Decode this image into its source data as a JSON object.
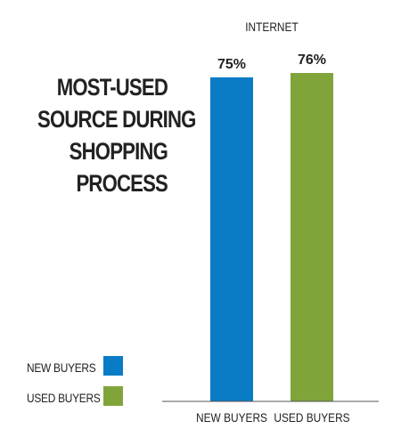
{
  "title_lines": [
    "MOST-USED",
    "SOURCE DURING",
    "SHOPPING",
    "PROCESS"
  ],
  "legend": [
    {
      "label": "NEW BUYERS",
      "color": "#0a7cc5"
    },
    {
      "label": "USED BUYERS",
      "color": "#80a43a"
    }
  ],
  "chart_data": {
    "type": "bar",
    "group_label": "INTERNET",
    "categories": [
      "NEW BUYERS",
      "USED BUYERS"
    ],
    "values": [
      75,
      76
    ],
    "value_labels": [
      "75%",
      "76%"
    ],
    "colors": [
      "#0a7cc5",
      "#80a43a"
    ],
    "ylim": [
      0,
      76
    ],
    "grid": false
  }
}
